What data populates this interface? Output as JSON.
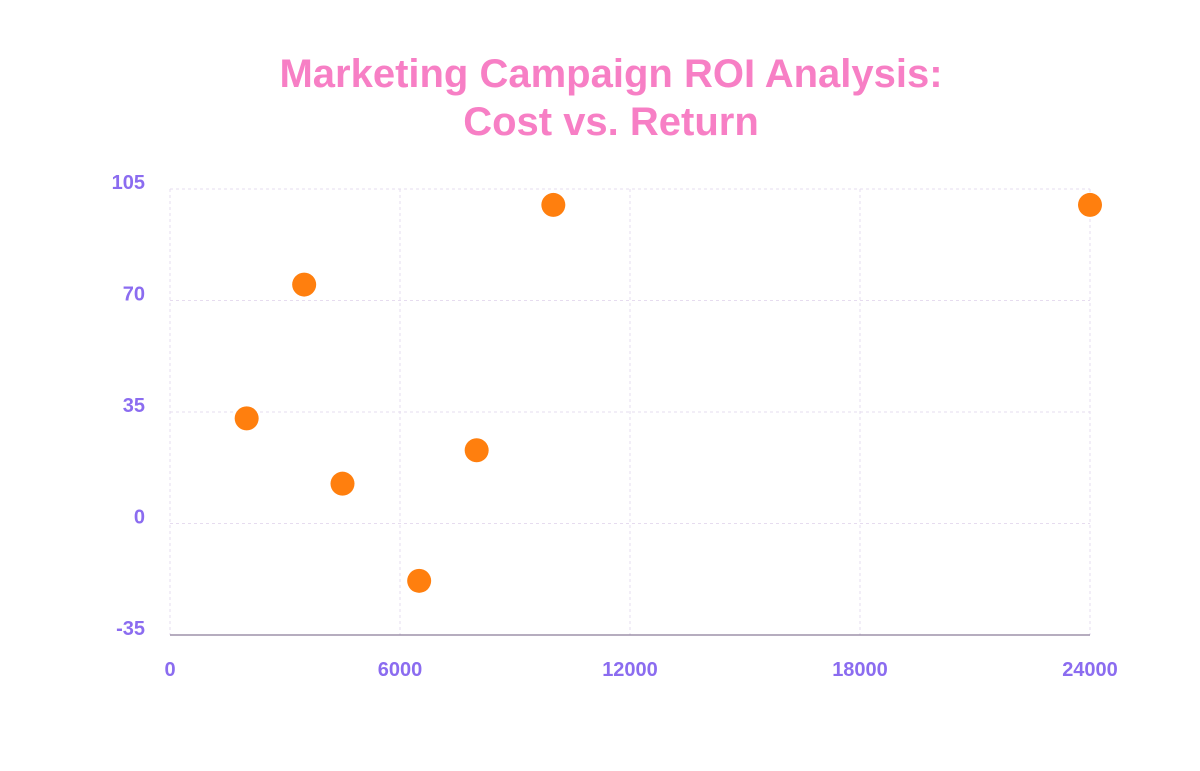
{
  "colors": {
    "title": "#F77FC5",
    "tick_labels": "#8B6CF0",
    "points": "#FF7F0E",
    "grid": "#e6dcef",
    "axis": "#8a7c99"
  },
  "chart_data": {
    "type": "scatter",
    "title_lines": [
      "Marketing Campaign ROI Analysis:",
      "Cost vs. Return"
    ],
    "xlabel": "",
    "ylabel": "",
    "xlim": [
      0,
      24000
    ],
    "ylim": [
      -35,
      105
    ],
    "x_ticks": [
      0,
      6000,
      12000,
      18000,
      24000
    ],
    "y_ticks": [
      -35,
      0,
      35,
      70,
      105
    ],
    "grid": true,
    "legend": "none",
    "points": [
      {
        "x": 2000,
        "y": 33
      },
      {
        "x": 3500,
        "y": 75
      },
      {
        "x": 4500,
        "y": 12.5
      },
      {
        "x": 6500,
        "y": -18
      },
      {
        "x": 8000,
        "y": 23
      },
      {
        "x": 10000,
        "y": 100
      },
      {
        "x": 24000,
        "y": 100
      }
    ]
  }
}
